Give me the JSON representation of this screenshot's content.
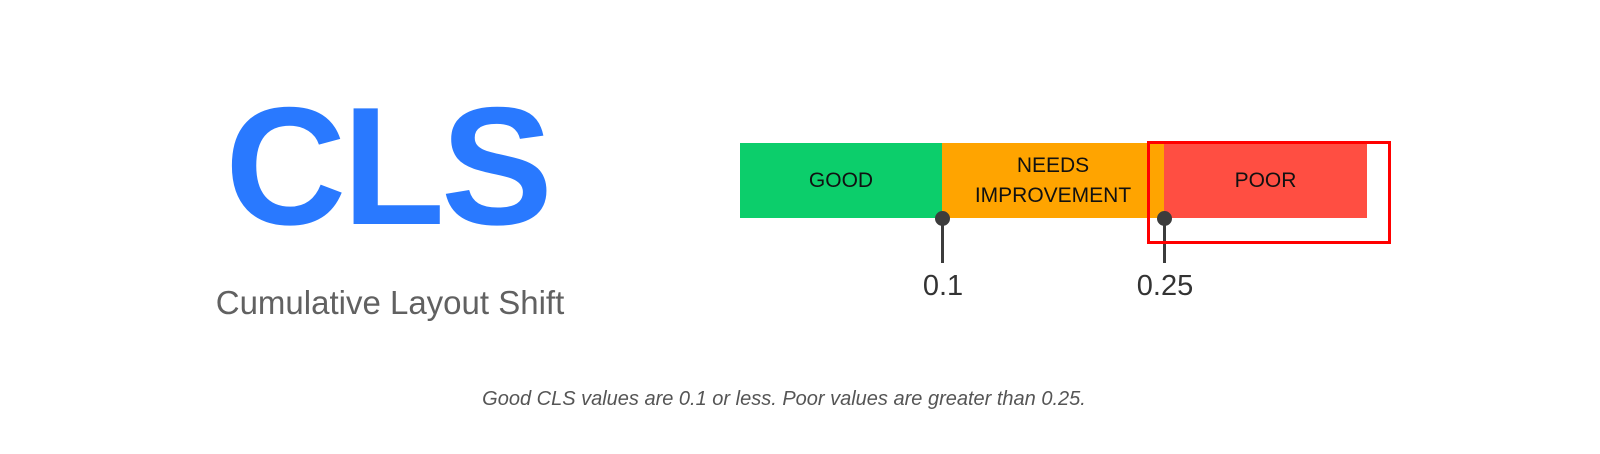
{
  "metric": {
    "abbreviation": "CLS",
    "full_name": "Cumulative Layout Shift",
    "color": "#2979ff"
  },
  "scale": {
    "segments": [
      {
        "label": "GOOD",
        "color": "#0cce6b"
      },
      {
        "label": "NEEDS IMPROVEMENT",
        "color": "#ffa400"
      },
      {
        "label": "POOR",
        "color": "#ff4e42"
      }
    ],
    "thresholds": [
      "0.1",
      "0.25"
    ],
    "highlighted_segment": "POOR",
    "highlight_color": "#ff0000"
  },
  "caption": "Good CLS values are 0.1 or less. Poor values are greater than 0.25."
}
